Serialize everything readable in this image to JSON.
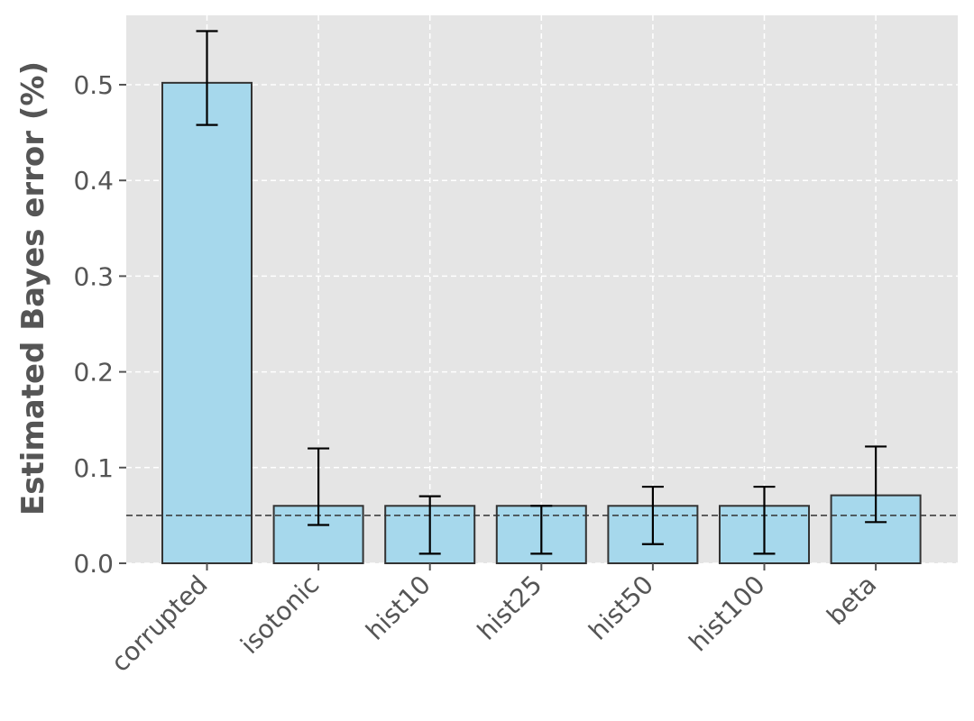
{
  "chart_data": {
    "type": "bar",
    "categories": [
      "corrupted",
      "isotonic",
      "hist10",
      "hist25",
      "hist50",
      "hist100",
      "beta"
    ],
    "values": [
      0.502,
      0.06,
      0.06,
      0.06,
      0.06,
      0.06,
      0.071
    ],
    "error_low": [
      0.458,
      0.04,
      0.01,
      0.01,
      0.02,
      0.01,
      0.043
    ],
    "error_high": [
      0.556,
      0.12,
      0.07,
      0.06,
      0.08,
      0.08,
      0.122
    ],
    "reference_line": 0.05,
    "ylabel": "Estimated Bayes error (%)",
    "xlabel": "",
    "ylim": [
      0.0,
      0.5725
    ],
    "yticks": [
      "0.0",
      "0.1",
      "0.2",
      "0.3",
      "0.4",
      "0.5"
    ],
    "grid": true,
    "bar_color": "#a6d8ec",
    "bar_edge_color": "#333333",
    "background_color": "#e5e5e5",
    "grid_color": "#ffffff",
    "text_color": "#555555"
  }
}
